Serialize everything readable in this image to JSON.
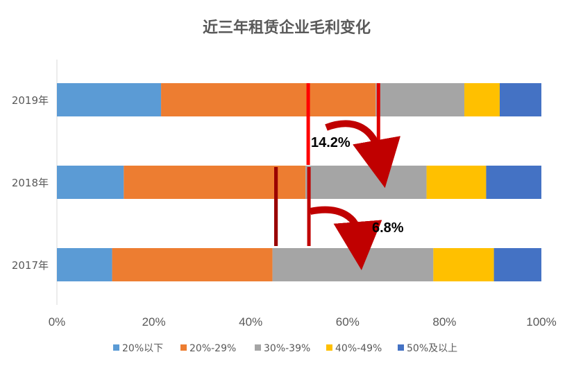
{
  "chart_data": {
    "type": "bar",
    "orientation": "horizontal",
    "stacked": "percent",
    "title": "近三年租赁企业毛利变化",
    "categories": [
      "2019年",
      "2018年",
      "2017年"
    ],
    "series": [
      {
        "name": "20%以下",
        "color": "#5B9BD5",
        "values": [
          21.5,
          13.8,
          11.4
        ]
      },
      {
        "name": "20%-29%",
        "color": "#ED7D31",
        "values": [
          44.3,
          37.5,
          33.1
        ]
      },
      {
        "name": "30%-39%",
        "color": "#A5A5A5",
        "values": [
          18.3,
          25.0,
          33.2
        ]
      },
      {
        "name": "40%-49%",
        "color": "#FFC000",
        "values": [
          7.3,
          12.3,
          12.5
        ]
      },
      {
        "name": "50%及以上",
        "color": "#4472C4",
        "values": [
          8.6,
          11.4,
          9.8
        ]
      }
    ],
    "xlim": [
      0,
      100
    ],
    "x_ticks": [
      "0%",
      "20%",
      "40%",
      "60%",
      "80%",
      "100%"
    ],
    "grid": false,
    "legend": "bottom",
    "annotations": [
      {
        "text": "14.2%",
        "color": "#C00000",
        "from": "2018年",
        "to": "2019年"
      },
      {
        "text": "6.8%",
        "color": "#C00000",
        "from": "2017年",
        "to": "2018年"
      }
    ]
  }
}
